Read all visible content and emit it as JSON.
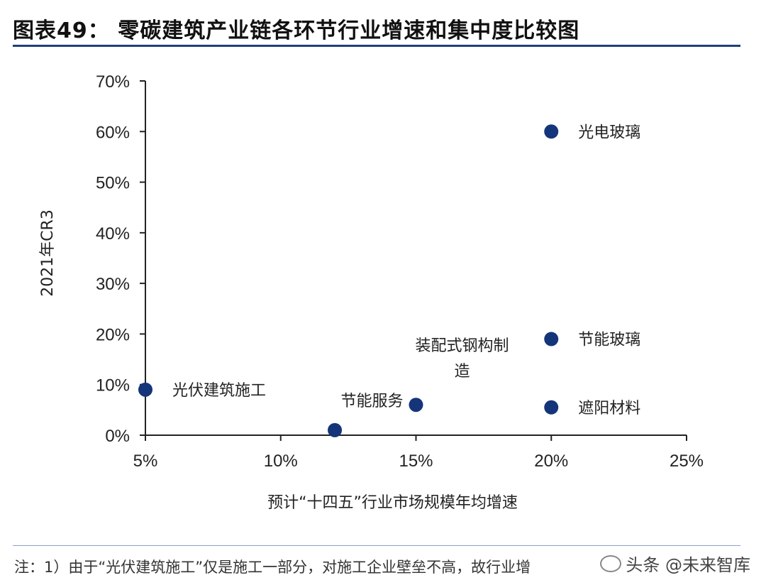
{
  "title": "图表49：  零碳建筑产业链各环节行业增速和集中度比较图",
  "footnote": "注：1）由于“光伏建筑施工”仅是施工一部分，对施工企业壁垒不高，故行业增",
  "watermark": "头条 @未来智库",
  "colors": {
    "accent": "#1f3f7a",
    "point": "#15357a",
    "axis": "#222222"
  },
  "chart_data": {
    "type": "scatter",
    "title": "零碳建筑产业链各环节行业增速和集中度比较图",
    "xlabel": "预计“十四五”行业市场规模年均增速",
    "ylabel": "2021年CR3",
    "xlim": [
      0.05,
      0.25
    ],
    "ylim": [
      0,
      0.7
    ],
    "x_ticks": [
      0.05,
      0.1,
      0.15,
      0.2,
      0.25
    ],
    "x_tick_labels": [
      "5%",
      "10%",
      "15%",
      "20%",
      "25%"
    ],
    "y_ticks": [
      0,
      0.1,
      0.2,
      0.3,
      0.4,
      0.5,
      0.6,
      0.7
    ],
    "y_tick_labels": [
      "0%",
      "10%",
      "20%",
      "30%",
      "40%",
      "50%",
      "60%",
      "70%"
    ],
    "grid": false,
    "points": [
      {
        "label": "光伏建筑施工",
        "x": 0.05,
        "y": 0.09
      },
      {
        "label": "",
        "x": 0.12,
        "y": 0.01
      },
      {
        "label": "节能服务",
        "x": 0.15,
        "y": 0.06
      },
      {
        "label": "装配式钢构制造",
        "x": 0.15,
        "y": 0.06
      },
      {
        "label": "光电玻璃",
        "x": 0.2,
        "y": 0.6
      },
      {
        "label": "节能玻璃",
        "x": 0.2,
        "y": 0.19
      },
      {
        "label": "遮阳材料",
        "x": 0.2,
        "y": 0.055
      }
    ]
  }
}
